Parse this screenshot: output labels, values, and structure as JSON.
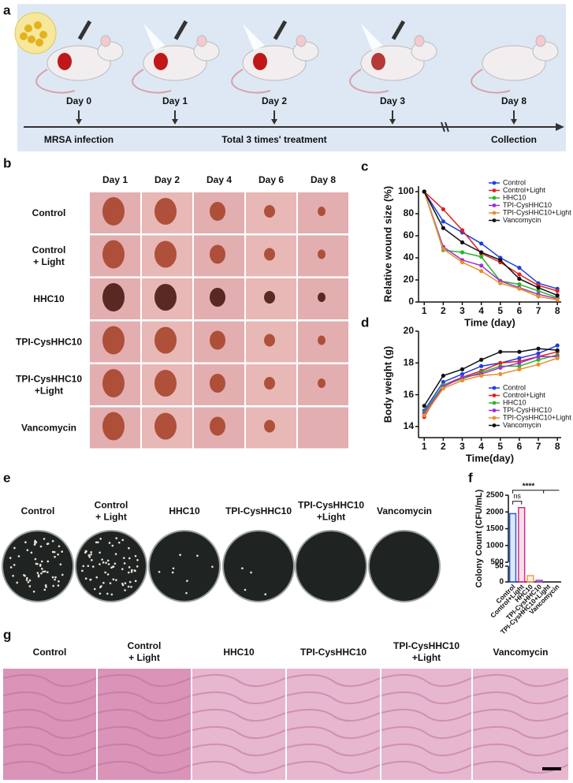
{
  "panel_labels": {
    "a": "a",
    "b": "b",
    "c": "c",
    "d": "d",
    "e": "e",
    "f": "f",
    "g": "g"
  },
  "timeline": {
    "days": [
      "Day 0",
      "Day 1",
      "Day 2",
      "Day 3",
      "Day 8"
    ],
    "events": [
      "MRSA infection",
      "Total 3 times' treatment",
      "Collection"
    ]
  },
  "wound_photos": {
    "columns": [
      "Day 1",
      "Day 2",
      "Day 4",
      "Day 6",
      "Day 8"
    ],
    "rows": [
      [
        "Control"
      ],
      [
        "Control",
        "+ Light"
      ],
      [
        "HHC10"
      ],
      [
        "TPI-CysHHC10"
      ],
      [
        "TPI-CysHHC10",
        "+Light"
      ],
      [
        "Vancomycin"
      ]
    ]
  },
  "chart_data": [
    {
      "type": "line",
      "xlabel": "Time (day)",
      "ylabel": "Relative wound size (%)",
      "x": [
        1,
        2,
        3,
        4,
        5,
        6,
        7,
        8
      ],
      "xlim": [
        0.7,
        8.2
      ],
      "xticks": [
        1,
        2,
        3,
        4,
        5,
        6,
        7,
        8
      ],
      "ylim": [
        0,
        105
      ],
      "yticks": [
        0,
        20,
        40,
        60,
        80,
        100
      ],
      "legend": "upper right",
      "series": [
        {
          "name": "Control",
          "color": "#1f3fe0",
          "values": [
            100,
            73,
            63,
            53,
            40,
            31,
            17,
            12
          ]
        },
        {
          "name": "Control+Light",
          "color": "#e02020",
          "values": [
            100,
            84,
            65,
            44,
            36,
            25,
            15,
            10
          ]
        },
        {
          "name": "HHC10",
          "color": "#2bb52b",
          "values": [
            100,
            47,
            45,
            41,
            19,
            16,
            10,
            4
          ]
        },
        {
          "name": "TPI-CysHHC10",
          "color": "#a030d0",
          "values": [
            100,
            50,
            38,
            33,
            19,
            13,
            7,
            3
          ]
        },
        {
          "name": "TPI-CysHHC10+Light",
          "color": "#e8902a",
          "values": [
            100,
            48,
            36,
            28,
            17,
            12,
            5,
            2
          ]
        },
        {
          "name": "Vancomycin",
          "color": "#111111",
          "values": [
            100,
            67,
            54,
            45,
            38,
            21,
            13,
            6
          ]
        }
      ]
    },
    {
      "type": "line",
      "xlabel": "Time(day)",
      "ylabel": "Body weight (g)",
      "x": [
        1,
        2,
        3,
        4,
        5,
        6,
        7,
        8
      ],
      "xlim": [
        0.7,
        8.2
      ],
      "xticks": [
        1,
        2,
        3,
        4,
        5,
        6,
        7,
        8
      ],
      "ylim": [
        13.3,
        20
      ],
      "yticks": [
        14,
        16,
        18,
        20
      ],
      "legend": "lower right",
      "series": [
        {
          "name": "Control",
          "color": "#1f3fe0",
          "values": [
            15.0,
            16.8,
            17.3,
            17.8,
            18.0,
            18.3,
            18.6,
            19.1
          ]
        },
        {
          "name": "Control+Light",
          "color": "#e02020",
          "values": [
            14.6,
            16.6,
            17.1,
            17.5,
            18.0,
            18.1,
            18.4,
            18.7
          ]
        },
        {
          "name": "HHC10",
          "color": "#2bb52b",
          "values": [
            14.9,
            16.6,
            17.0,
            17.4,
            17.8,
            17.8,
            18.2,
            18.5
          ]
        },
        {
          "name": "TPI-CysHHC10",
          "color": "#a030d0",
          "values": [
            14.8,
            16.5,
            17.1,
            17.3,
            17.7,
            18.0,
            18.4,
            18.4
          ]
        },
        {
          "name": "TPI-CysHHC10+Light",
          "color": "#e8902a",
          "values": [
            14.7,
            16.4,
            16.9,
            17.2,
            17.3,
            17.6,
            17.9,
            18.3
          ]
        },
        {
          "name": "Vancomycin",
          "color": "#111111",
          "values": [
            15.3,
            17.2,
            17.6,
            18.2,
            18.7,
            18.7,
            18.9,
            18.8
          ]
        }
      ]
    },
    {
      "type": "bar",
      "ylabel": "Colony Count (CFU/mL)",
      "categories": [
        "Control",
        "Control+Light",
        "HHC10",
        "TPI-CysHHC10",
        "TPI-CysHHC10+Light",
        "Vancomycin"
      ],
      "values": [
        1950,
        2130,
        20,
        5,
        0,
        0
      ],
      "colors": [
        "#2a5fd0",
        "#d62f86",
        "#e8a04a",
        "#9a40c0",
        "#e8902a",
        "#333333"
      ],
      "ylim": [
        0,
        2500
      ],
      "axis_break": [
        50,
        500
      ],
      "yticks": [
        0,
        50,
        500,
        1000,
        1500,
        2000,
        2500
      ],
      "annotations": [
        "ns",
        "****"
      ]
    }
  ],
  "plates": {
    "labels": [
      [
        "Control"
      ],
      [
        "Control",
        "+ Light"
      ],
      [
        "HHC10"
      ],
      [
        "TPI-CysHHC10"
      ],
      [
        "TPI-CysHHC10",
        "+Light"
      ],
      [
        "Vancomycin"
      ]
    ]
  },
  "histology": {
    "labels": [
      [
        "Control"
      ],
      [
        "Control",
        "+ Light"
      ],
      [
        "HHC10"
      ],
      [
        "TPI-CysHHC10"
      ],
      [
        "TPI-CysHHC10",
        "+Light"
      ],
      [
        "Vancomycin"
      ]
    ]
  }
}
